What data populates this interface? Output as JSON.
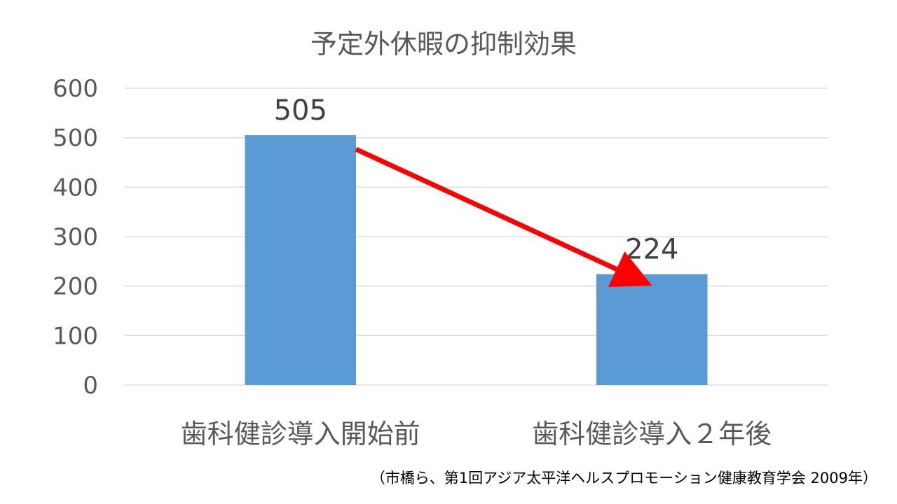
{
  "chart_data": {
    "type": "bar",
    "title": "予定外休暇の抑制効果",
    "categories": [
      "歯科健診導入開始前",
      "歯科健診導入２年後"
    ],
    "series": [
      {
        "values": [
          505,
          224
        ],
        "color": "#5b9bd5"
      }
    ],
    "data_labels": [
      "505",
      "224"
    ],
    "ylim": [
      0,
      600
    ],
    "yticks": [
      0,
      100,
      200,
      300,
      400,
      500,
      600
    ],
    "ytick_labels": [
      "0",
      "100",
      "200",
      "300",
      "400",
      "500",
      "600"
    ],
    "xlabel": "",
    "ylabel": "",
    "grid": true,
    "legend": "none",
    "annotations": {
      "trend_arrow": {
        "from_category": 0,
        "to_category": 1,
        "color": "#ff0000"
      }
    }
  },
  "footnote": "（市橋ら、第1回アジア太平洋ヘルスプロモーション健康教育学会 2009年）"
}
